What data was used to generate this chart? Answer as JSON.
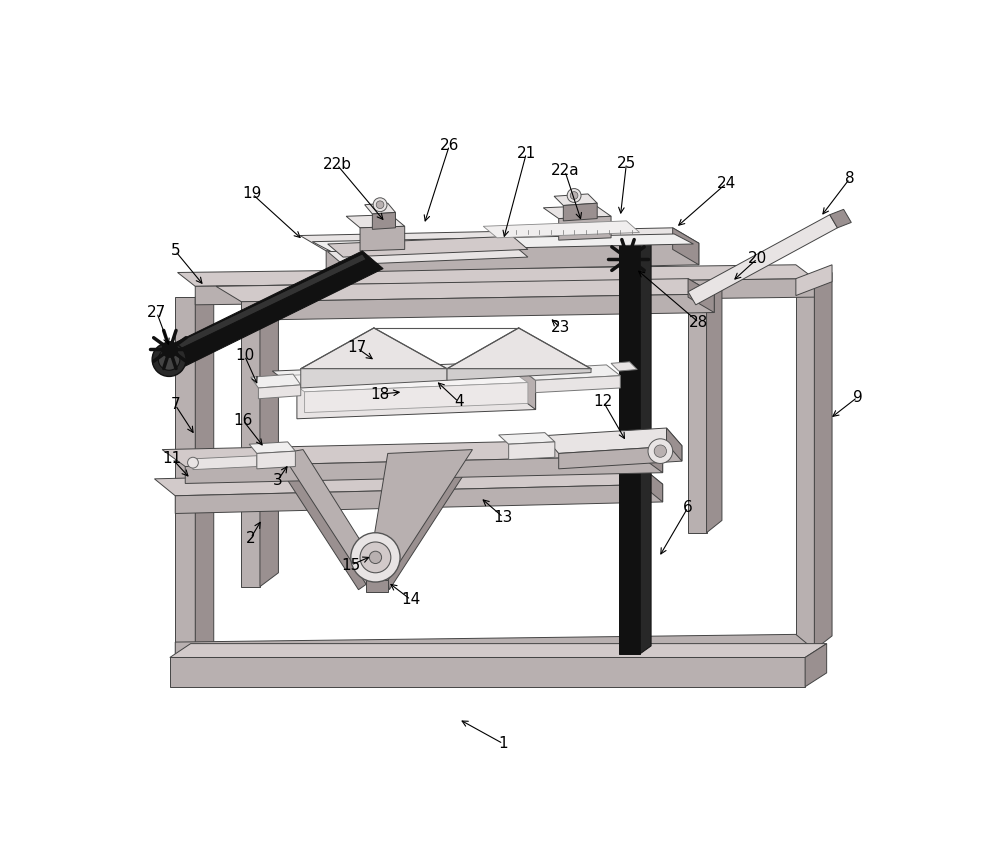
{
  "bg": "#ffffff",
  "c_light": "#c8c8c8",
  "c_mid": "#aaaaaa",
  "c_dark": "#888888",
  "c_darker": "#666666",
  "c_face": "#d8d8d8",
  "c_pink": "#d4c8c8",
  "annotations": [
    [
      "1",
      488,
      832,
      430,
      800
    ],
    [
      "2",
      160,
      565,
      175,
      540
    ],
    [
      "3",
      195,
      490,
      210,
      468
    ],
    [
      "4",
      430,
      388,
      400,
      360
    ],
    [
      "5",
      62,
      192,
      100,
      238
    ],
    [
      "6",
      728,
      525,
      690,
      590
    ],
    [
      "7",
      62,
      392,
      88,
      432
    ],
    [
      "8",
      938,
      98,
      900,
      148
    ],
    [
      "9",
      948,
      382,
      912,
      410
    ],
    [
      "10",
      152,
      328,
      170,
      368
    ],
    [
      "11",
      58,
      462,
      82,
      488
    ],
    [
      "12",
      618,
      388,
      648,
      440
    ],
    [
      "13",
      488,
      538,
      458,
      512
    ],
    [
      "14",
      368,
      645,
      338,
      622
    ],
    [
      "15",
      290,
      600,
      318,
      588
    ],
    [
      "16",
      150,
      412,
      178,
      448
    ],
    [
      "17",
      298,
      318,
      322,
      335
    ],
    [
      "18",
      328,
      378,
      358,
      375
    ],
    [
      "19",
      162,
      118,
      228,
      178
    ],
    [
      "20",
      818,
      202,
      785,
      232
    ],
    [
      "21",
      518,
      65,
      488,
      178
    ],
    [
      "22a",
      568,
      88,
      590,
      155
    ],
    [
      "22b",
      272,
      80,
      335,
      155
    ],
    [
      "23",
      562,
      292,
      548,
      278
    ],
    [
      "24",
      778,
      104,
      712,
      162
    ],
    [
      "25",
      648,
      78,
      640,
      148
    ],
    [
      "26",
      418,
      55,
      385,
      158
    ],
    [
      "27",
      38,
      272,
      55,
      318
    ],
    [
      "28",
      742,
      285,
      660,
      215
    ]
  ]
}
